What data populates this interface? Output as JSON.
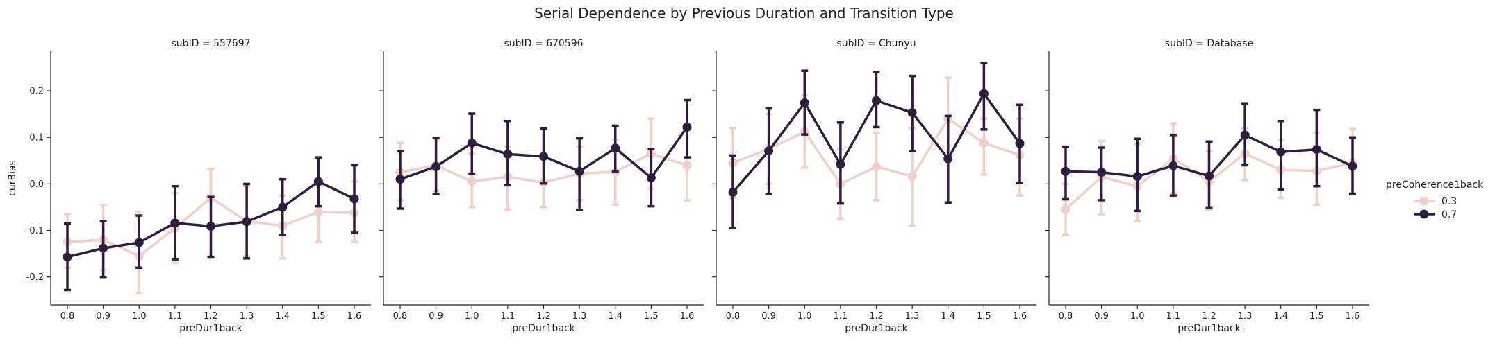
{
  "figure": {
    "title": "Serial Dependence by Previous Duration and Transition Type"
  },
  "legend": {
    "title": "preCoherence1back",
    "placement": "right",
    "entries": [
      "0.3",
      "0.7"
    ]
  },
  "colors": {
    "series_0_3": "#efd0ca",
    "series_0_7": "#2d1e3e",
    "axis": "#222222"
  },
  "chart_data": [
    {
      "type": "line",
      "title": "subID = 557697",
      "xlabel": "preDur1back",
      "ylabel": "curBias",
      "categories": [
        "0.8",
        "0.9",
        "1.0",
        "1.1",
        "1.2",
        "1.3",
        "1.4",
        "1.5",
        "1.6"
      ],
      "ylim": [
        -0.26,
        0.285
      ],
      "yticks": [
        -0.2,
        -0.1,
        0.0,
        0.1,
        0.2
      ],
      "series": [
        {
          "name": "0.3",
          "values": [
            -0.125,
            -0.12,
            -0.155,
            -0.095,
            -0.03,
            -0.08,
            -0.09,
            -0.06,
            -0.062
          ],
          "err_low": [
            -0.18,
            -0.185,
            -0.235,
            -0.17,
            -0.155,
            -0.155,
            -0.16,
            -0.125,
            -0.125
          ],
          "err_high": [
            -0.065,
            -0.045,
            -0.06,
            -0.02,
            0.032,
            -0.005,
            -0.025,
            0.005,
            0.005
          ]
        },
        {
          "name": "0.7",
          "values": [
            -0.157,
            -0.138,
            -0.126,
            -0.084,
            -0.091,
            -0.081,
            -0.05,
            0.005,
            -0.032
          ],
          "err_low": [
            -0.228,
            -0.2,
            -0.18,
            -0.162,
            -0.158,
            -0.16,
            -0.11,
            -0.048,
            -0.105
          ],
          "err_high": [
            -0.085,
            -0.08,
            -0.068,
            -0.005,
            -0.028,
            0.0,
            0.01,
            0.057,
            0.04
          ]
        }
      ]
    },
    {
      "type": "line",
      "title": "subID = 670596",
      "xlabel": "preDur1back",
      "ylabel": "",
      "categories": [
        "0.8",
        "0.9",
        "1.0",
        "1.1",
        "1.2",
        "1.3",
        "1.4",
        "1.5",
        "1.6"
      ],
      "ylim": [
        -0.26,
        0.285
      ],
      "yticks": [
        -0.2,
        -0.1,
        0.0,
        0.1,
        0.2
      ],
      "series": [
        {
          "name": "0.3",
          "values": [
            0.025,
            0.04,
            0.005,
            0.015,
            0.003,
            0.022,
            0.026,
            0.065,
            0.04
          ],
          "err_low": [
            -0.035,
            -0.015,
            -0.05,
            -0.055,
            -0.05,
            -0.035,
            -0.045,
            -0.01,
            -0.035
          ],
          "err_high": [
            0.088,
            0.095,
            0.065,
            0.08,
            0.06,
            0.08,
            0.095,
            0.14,
            0.12
          ]
        },
        {
          "name": "0.7",
          "values": [
            0.01,
            0.037,
            0.088,
            0.064,
            0.059,
            0.027,
            0.077,
            0.013,
            0.122
          ],
          "err_low": [
            -0.053,
            -0.022,
            0.022,
            -0.003,
            0.001,
            -0.056,
            0.027,
            -0.048,
            0.057
          ],
          "err_high": [
            0.07,
            0.099,
            0.151,
            0.135,
            0.119,
            0.098,
            0.125,
            0.075,
            0.18
          ]
        }
      ]
    },
    {
      "type": "line",
      "title": "subID = Chunyu",
      "xlabel": "preDur1back",
      "ylabel": "",
      "categories": [
        "0.8",
        "0.9",
        "1.0",
        "1.1",
        "1.2",
        "1.3",
        "1.4",
        "1.5",
        "1.6"
      ],
      "ylim": [
        -0.26,
        0.285
      ],
      "yticks": [
        -0.2,
        -0.1,
        0.0,
        0.1,
        0.2
      ],
      "series": [
        {
          "name": "0.3",
          "values": [
            0.045,
            0.075,
            0.112,
            0.0,
            0.037,
            0.016,
            0.14,
            0.088,
            0.062
          ],
          "err_low": [
            -0.03,
            0.0,
            0.035,
            -0.075,
            -0.035,
            -0.09,
            0.05,
            0.02,
            -0.025
          ],
          "err_high": [
            0.12,
            0.15,
            0.19,
            0.075,
            0.11,
            0.12,
            0.228,
            0.14,
            0.14
          ]
        },
        {
          "name": "0.7",
          "values": [
            -0.018,
            0.071,
            0.174,
            0.042,
            0.179,
            0.153,
            0.054,
            0.194,
            0.087
          ],
          "err_low": [
            -0.095,
            -0.022,
            0.106,
            -0.042,
            0.122,
            0.071,
            -0.04,
            0.117,
            0.002
          ],
          "err_high": [
            0.061,
            0.162,
            0.243,
            0.132,
            0.24,
            0.232,
            0.146,
            0.26,
            0.17
          ]
        }
      ]
    },
    {
      "type": "line",
      "title": "subID = Database",
      "xlabel": "preDur1back",
      "ylabel": "",
      "categories": [
        "0.8",
        "0.9",
        "1.0",
        "1.1",
        "1.2",
        "1.3",
        "1.4",
        "1.5",
        "1.6"
      ],
      "ylim": [
        -0.26,
        0.285
      ],
      "yticks": [
        -0.2,
        -0.1,
        0.0,
        0.1,
        0.2
      ],
      "series": [
        {
          "name": "0.3",
          "values": [
            -0.055,
            0.015,
            -0.005,
            0.055,
            0.005,
            0.065,
            0.03,
            0.028,
            0.045
          ],
          "err_low": [
            -0.11,
            -0.065,
            -0.08,
            -0.02,
            -0.055,
            0.008,
            -0.03,
            -0.045,
            -0.02
          ],
          "err_high": [
            0.0,
            0.092,
            0.085,
            0.13,
            0.07,
            0.12,
            0.095,
            0.11,
            0.118
          ]
        },
        {
          "name": "0.7",
          "values": [
            0.027,
            0.025,
            0.016,
            0.039,
            0.017,
            0.105,
            0.069,
            0.074,
            0.038
          ],
          "err_low": [
            -0.033,
            -0.035,
            -0.058,
            -0.025,
            -0.052,
            0.04,
            -0.012,
            -0.005,
            -0.022
          ],
          "err_high": [
            0.08,
            0.078,
            0.097,
            0.105,
            0.091,
            0.173,
            0.135,
            0.159,
            0.1
          ]
        }
      ]
    }
  ]
}
